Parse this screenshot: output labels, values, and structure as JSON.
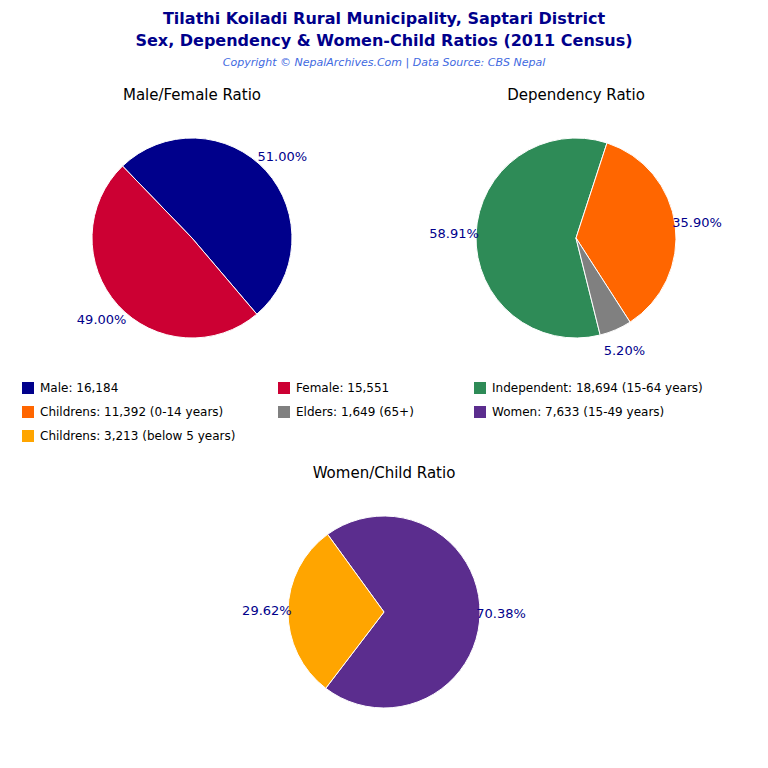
{
  "title": "Tilathi Koiladi Rural Municipality, Saptari District",
  "subtitle": "Sex, Dependency & Women-Child Ratios (2011 Census)",
  "annotations": [
    "Copyright © NepalArchives.Com | Data Source: CBS Nepal"
  ],
  "chart_data": [
    {
      "type": "pie",
      "title": "Male/Female Ratio",
      "categories": [
        "Male: 16,184",
        "Female: 15,551"
      ],
      "values": [
        51.0,
        49.0
      ],
      "value_labels": [
        "51.00%",
        "49.00%"
      ],
      "colors": [
        "#00008B",
        "#CC0033"
      ],
      "data_labels": true
    },
    {
      "type": "pie",
      "title": "Dependency Ratio",
      "categories": [
        "Independent: 18,694 (15-64 years)",
        "Childrens: 11,392 (0-14 years)",
        "Elders: 1,649 (65+)"
      ],
      "values": [
        58.91,
        35.9,
        5.2
      ],
      "value_labels": [
        "58.91%",
        "35.90%",
        "5.20%"
      ],
      "colors": [
        "#2E8B57",
        "#FF6600",
        "#808080"
      ],
      "data_labels": true
    },
    {
      "type": "pie",
      "title": "Women/Child Ratio",
      "categories": [
        "Women: 7,633 (15-49 years)",
        "Childrens: 3,213 (below 5 years)"
      ],
      "values": [
        70.38,
        29.62
      ],
      "value_labels": [
        "70.38%",
        "29.62%"
      ],
      "colors": [
        "#5B2D8E",
        "#FFA500"
      ],
      "data_labels": true
    }
  ]
}
